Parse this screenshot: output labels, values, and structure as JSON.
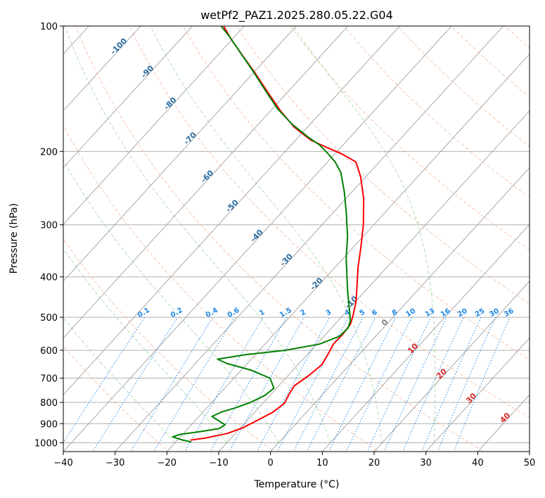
{
  "chart_data": {
    "type": "line",
    "subtype": "skew-t log-p",
    "title": "wetPf2_PAZ1.2025.280.05.22.G04",
    "xlabel": "Temperature (°C)",
    "ylabel": "Pressure (hPa)",
    "xlim": [
      -40,
      50
    ],
    "ylim": [
      1050,
      100
    ],
    "x_ticks": [
      -40,
      -30,
      -20,
      -10,
      0,
      10,
      20,
      30,
      40,
      50
    ],
    "x_tick_labels": [
      "−40",
      "−30",
      "−20",
      "−10",
      "0",
      "10",
      "20",
      "30",
      "40",
      "50"
    ],
    "y_ticks": [
      100,
      200,
      300,
      400,
      500,
      600,
      700,
      800,
      900,
      1000
    ],
    "y_tick_labels": [
      "100",
      "200",
      "300",
      "400",
      "500",
      "600",
      "700",
      "800",
      "900",
      "1000"
    ],
    "dry_adiabat_theta_K": [
      250,
      270,
      290,
      310,
      330,
      350,
      370,
      390,
      410,
      430,
      450,
      470,
      490,
      510
    ],
    "moist_adiabat_temps_C": [
      -20,
      -10,
      0,
      10,
      20,
      30
    ],
    "mixing_ratio_lines": [
      {
        "w": 0.1,
        "label": "0.1"
      },
      {
        "w": 0.2,
        "label": "0.2"
      },
      {
        "w": 0.4,
        "label": "0.4"
      },
      {
        "w": 0.6,
        "label": "0.6"
      },
      {
        "w": 1,
        "label": "1"
      },
      {
        "w": 1.5,
        "label": "1.5"
      },
      {
        "w": 2,
        "label": "2"
      },
      {
        "w": 3,
        "label": "3"
      },
      {
        "w": 4,
        "label": "4"
      },
      {
        "w": 5,
        "label": "5"
      },
      {
        "w": 6,
        "label": "6"
      },
      {
        "w": 8,
        "label": "8"
      },
      {
        "w": 10,
        "label": "10"
      },
      {
        "w": 13,
        "label": "13"
      },
      {
        "w": 16,
        "label": "16"
      },
      {
        "w": 20,
        "label": "20"
      },
      {
        "w": 25,
        "label": "25"
      },
      {
        "w": 30,
        "label": "30"
      },
      {
        "w": 36,
        "label": "36"
      }
    ],
    "isotherm_labels": [
      {
        "t": -100,
        "label": "-100",
        "p": 113
      },
      {
        "t": -90,
        "label": "-90",
        "p": 130
      },
      {
        "t": -80,
        "label": "-80",
        "p": 155
      },
      {
        "t": -70,
        "label": "-70",
        "p": 188
      },
      {
        "t": -60,
        "label": "-60",
        "p": 232
      },
      {
        "t": -50,
        "label": "-50",
        "p": 273
      },
      {
        "t": -40,
        "label": "-40",
        "p": 322
      },
      {
        "t": -30,
        "label": "-30",
        "p": 368
      },
      {
        "t": -20,
        "label": "-20",
        "p": 420
      },
      {
        "t": -10,
        "label": "-10",
        "p": 465
      }
    ],
    "temp_labels": [
      {
        "t": 0,
        "label": "0",
        "p": 520
      },
      {
        "t": 10,
        "label": "10",
        "p": 600
      },
      {
        "t": 20,
        "label": "20",
        "p": 690
      },
      {
        "t": 30,
        "label": "30",
        "p": 790
      },
      {
        "t": 40,
        "label": "40",
        "p": 880
      }
    ],
    "series": [
      {
        "name": "Temperature",
        "color": "#ff0000",
        "points": [
          {
            "p": 985,
            "t": -17.5
          },
          {
            "p": 975,
            "t": -15.0
          },
          {
            "p": 950,
            "t": -11.5
          },
          {
            "p": 920,
            "t": -9.5
          },
          {
            "p": 895,
            "t": -8.5
          },
          {
            "p": 870,
            "t": -7.5
          },
          {
            "p": 845,
            "t": -6.5
          },
          {
            "p": 805,
            "t": -5.8
          },
          {
            "p": 765,
            "t": -6.5
          },
          {
            "p": 730,
            "t": -7.0
          },
          {
            "p": 690,
            "t": -6.0
          },
          {
            "p": 650,
            "t": -5.4
          },
          {
            "p": 610,
            "t": -6.1
          },
          {
            "p": 580,
            "t": -6.8
          },
          {
            "p": 550,
            "t": -6.7
          },
          {
            "p": 520,
            "t": -7.0
          },
          {
            "p": 500,
            "t": -7.8
          },
          {
            "p": 460,
            "t": -9.8
          },
          {
            "p": 420,
            "t": -12.5
          },
          {
            "p": 380,
            "t": -15.5
          },
          {
            "p": 340,
            "t": -18.5
          },
          {
            "p": 300,
            "t": -22.0
          },
          {
            "p": 260,
            "t": -26.5
          },
          {
            "p": 230,
            "t": -31.0
          },
          {
            "p": 212,
            "t": -34.5
          },
          {
            "p": 203,
            "t": -38.5
          },
          {
            "p": 196,
            "t": -42.5
          },
          {
            "p": 188,
            "t": -47.0
          },
          {
            "p": 175,
            "t": -52.5
          },
          {
            "p": 160,
            "t": -58.0
          },
          {
            "p": 145,
            "t": -63.5
          },
          {
            "p": 130,
            "t": -69.5
          },
          {
            "p": 118,
            "t": -75.0
          },
          {
            "p": 108,
            "t": -80.0
          },
          {
            "p": 100,
            "t": -84.0
          }
        ]
      },
      {
        "name": "Dewpoint",
        "color": "#008000",
        "points": [
          {
            "p": 995,
            "t": -17.0
          },
          {
            "p": 985,
            "t": -19.0
          },
          {
            "p": 968,
            "t": -21.5
          },
          {
            "p": 955,
            "t": -20.5
          },
          {
            "p": 940,
            "t": -17.0
          },
          {
            "p": 925,
            "t": -14.0
          },
          {
            "p": 905,
            "t": -13.5
          },
          {
            "p": 885,
            "t": -15.5
          },
          {
            "p": 865,
            "t": -17.5
          },
          {
            "p": 845,
            "t": -16.5
          },
          {
            "p": 825,
            "t": -14.5
          },
          {
            "p": 800,
            "t": -12.5
          },
          {
            "p": 770,
            "t": -11.0
          },
          {
            "p": 740,
            "t": -10.5
          },
          {
            "p": 700,
            "t": -13.0
          },
          {
            "p": 670,
            "t": -18.0
          },
          {
            "p": 645,
            "t": -24.0
          },
          {
            "p": 630,
            "t": -26.5
          },
          {
            "p": 615,
            "t": -22.0
          },
          {
            "p": 600,
            "t": -15.0
          },
          {
            "p": 580,
            "t": -9.5
          },
          {
            "p": 555,
            "t": -7.0
          },
          {
            "p": 530,
            "t": -6.8
          },
          {
            "p": 510,
            "t": -7.6
          },
          {
            "p": 480,
            "t": -9.7
          },
          {
            "p": 440,
            "t": -12.8
          },
          {
            "p": 400,
            "t": -16.0
          },
          {
            "p": 360,
            "t": -19.5
          },
          {
            "p": 320,
            "t": -23.0
          },
          {
            "p": 280,
            "t": -27.5
          },
          {
            "p": 250,
            "t": -31.5
          },
          {
            "p": 225,
            "t": -35.5
          },
          {
            "p": 212,
            "t": -38.5
          },
          {
            "p": 202,
            "t": -41.5
          },
          {
            "p": 193,
            "t": -44.5
          },
          {
            "p": 185,
            "t": -48.0
          },
          {
            "p": 172,
            "t": -53.5
          },
          {
            "p": 158,
            "t": -59.0
          },
          {
            "p": 143,
            "t": -64.5
          },
          {
            "p": 128,
            "t": -70.5
          },
          {
            "p": 116,
            "t": -76.0
          },
          {
            "p": 106,
            "t": -81.0
          },
          {
            "p": 100,
            "t": -84.5
          }
        ]
      }
    ]
  }
}
